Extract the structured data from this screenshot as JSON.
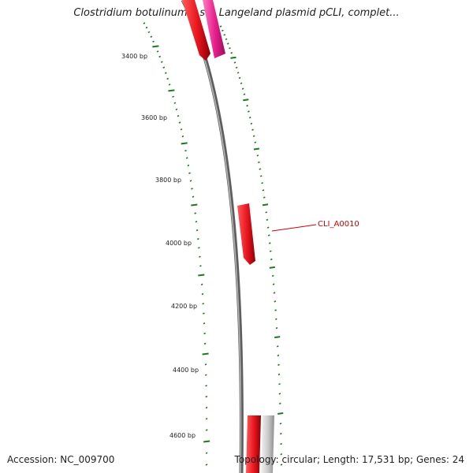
{
  "title": "Clostridium botulinum F str. Langeland plasmid pCLI, complet...",
  "footer": {
    "accession": "Accession: NC_009700",
    "summary": "Topology: circular; Length: 17,531 bp; Genes: 24"
  },
  "colors": {
    "backbone": "#777777",
    "tick": "#1c7a1c",
    "gene_red": "#e8141c",
    "gene_pink": "#e61e8c",
    "gene_gray": "#c8c8c8",
    "callout": "#cc0000"
  },
  "ticks": [
    {
      "label": "3400 bp"
    },
    {
      "label": "3600 bp"
    },
    {
      "label": "3800 bp"
    },
    {
      "label": "4000 bp"
    },
    {
      "label": "4200 bp"
    },
    {
      "label": "4400 bp"
    },
    {
      "label": "4600 bp"
    }
  ],
  "callouts": [
    {
      "label": "CLI_A0010"
    }
  ]
}
